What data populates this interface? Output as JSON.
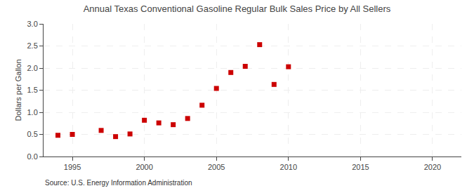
{
  "chart_data": {
    "type": "scatter",
    "title": "Annual Texas Conventional Gasoline Regular Bulk Sales Price by All Sellers",
    "ylabel": "Dollars per Gallon",
    "annotations": [
      "Source: U.S. Energy Information Administration"
    ],
    "x": [
      1994,
      1995,
      1997,
      1998,
      1999,
      2000,
      2001,
      2002,
      2003,
      2004,
      2005,
      2006,
      2007,
      2008,
      2009,
      2010
    ],
    "values": [
      0.48,
      0.5,
      0.59,
      0.45,
      0.51,
      0.82,
      0.76,
      0.72,
      0.86,
      1.16,
      1.54,
      1.9,
      2.04,
      2.53,
      1.63,
      2.03
    ],
    "color": "#cc0000",
    "marker": "square",
    "xlim": [
      1993,
      2022
    ],
    "ylim": [
      0.0,
      3.0
    ],
    "xticks": [
      1995,
      2000,
      2005,
      2010,
      2015,
      2020
    ],
    "yticks": [
      {
        "value": 0.0,
        "label": "0.0"
      },
      0.5,
      {
        "value": 1.0,
        "label": "1.0"
      },
      1.5,
      {
        "value": 2.0,
        "label": "2.0"
      },
      2.5,
      {
        "value": 3.0,
        "label": "3.0"
      }
    ],
    "grid": true
  }
}
